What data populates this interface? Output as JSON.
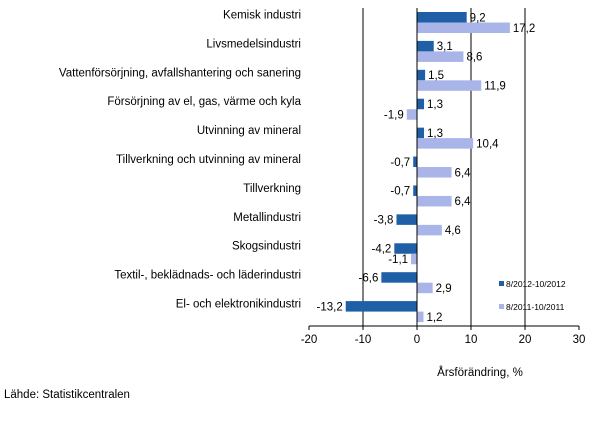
{
  "chart_data": {
    "type": "bar",
    "orientation": "horizontal",
    "categories": [
      "Kemisk industri",
      "Livsmedelsindustri",
      "Vattenförsörjning, avfallshantering och sanering",
      "Försörjning av el, gas, värme och kyla",
      "Utvinning av mineral",
      "Tillverkning och utvinning av mineral",
      "Tillverkning",
      "Metallindustri",
      "Skogsindustri",
      "Textil-, beklädnads- och läderindustri",
      "El- och elektronikindustri"
    ],
    "series": [
      {
        "name": "8/2012-10/2012",
        "color": "#1f5fa6",
        "values": [
          9.2,
          3.1,
          1.5,
          1.3,
          1.3,
          -0.7,
          -0.7,
          -3.8,
          -4.2,
          -6.6,
          -13.2
        ],
        "labels": [
          "9,2",
          "3,1",
          "1,5",
          "1,3",
          "1,3",
          "-0,7",
          "-0,7",
          "-3,8",
          "-4,2",
          "-6,6",
          "-13,2"
        ]
      },
      {
        "name": "8/2011-10/2011",
        "color": "#a9b4e8",
        "values": [
          17.2,
          8.6,
          11.9,
          -1.9,
          10.4,
          6.4,
          6.4,
          4.6,
          -1.1,
          2.9,
          1.2
        ],
        "labels": [
          "17,2",
          "8,6",
          "11,9",
          "-1,9",
          "10,4",
          "6,4",
          "6,4",
          "4,6",
          "-1,1",
          "2,9",
          "1,2"
        ]
      }
    ],
    "xlim": [
      -20,
      30
    ],
    "xticks": [
      -20,
      -10,
      0,
      10,
      20,
      30
    ],
    "xtick_labels": [
      "-20",
      "-10",
      "0",
      "10",
      "20",
      "30"
    ],
    "gridlines_at": [
      -10,
      10,
      20
    ],
    "xlabel": "Årsförändring, %",
    "legend_position": "bottom-right"
  },
  "source": "Lähde: Statistikcentralen"
}
